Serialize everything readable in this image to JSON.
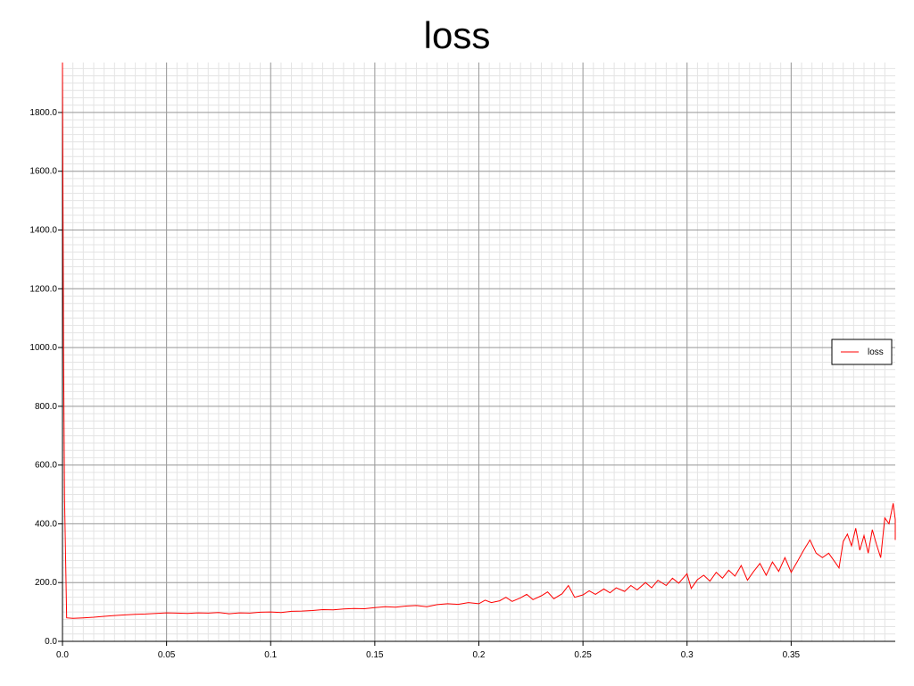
{
  "chart_data": {
    "type": "line",
    "title": "loss",
    "xlabel": "",
    "ylabel": "",
    "xlim": [
      0.0,
      0.4
    ],
    "ylim": [
      0.0,
      1970.0
    ],
    "x_ticks": [
      {
        "value": 0.0,
        "label": "0.0"
      },
      {
        "value": 0.05,
        "label": "0.05"
      },
      {
        "value": 0.1,
        "label": "0.1"
      },
      {
        "value": 0.15,
        "label": "0.15"
      },
      {
        "value": 0.2,
        "label": "0.2"
      },
      {
        "value": 0.25,
        "label": "0.25"
      },
      {
        "value": 0.3,
        "label": "0.3"
      },
      {
        "value": 0.35,
        "label": "0.35"
      }
    ],
    "y_ticks": [
      {
        "value": 0,
        "label": "0.0"
      },
      {
        "value": 200,
        "label": "200.0"
      },
      {
        "value": 400,
        "label": "400.0"
      },
      {
        "value": 600,
        "label": "600.0"
      },
      {
        "value": 800,
        "label": "800.0"
      },
      {
        "value": 1000,
        "label": "1000.0"
      },
      {
        "value": 1200,
        "label": "1200.0"
      },
      {
        "value": 1400,
        "label": "1400.0"
      },
      {
        "value": 1600,
        "label": "1600.0"
      },
      {
        "value": 1800,
        "label": "1800.0"
      }
    ],
    "grid": true,
    "legend_position": "right",
    "series": [
      {
        "name": "loss",
        "color": "#ff0000",
        "points": [
          [
            0.0,
            1970
          ],
          [
            0.0005,
            1000
          ],
          [
            0.001,
            490
          ],
          [
            0.002,
            80
          ],
          [
            0.005,
            78
          ],
          [
            0.01,
            80
          ],
          [
            0.015,
            82
          ],
          [
            0.02,
            85
          ],
          [
            0.025,
            88
          ],
          [
            0.03,
            90
          ],
          [
            0.035,
            92
          ],
          [
            0.04,
            93
          ],
          [
            0.045,
            95
          ],
          [
            0.05,
            97
          ],
          [
            0.055,
            96
          ],
          [
            0.06,
            95
          ],
          [
            0.065,
            97
          ],
          [
            0.07,
            96
          ],
          [
            0.075,
            98
          ],
          [
            0.08,
            94
          ],
          [
            0.085,
            97
          ],
          [
            0.09,
            96
          ],
          [
            0.095,
            99
          ],
          [
            0.1,
            100
          ],
          [
            0.105,
            98
          ],
          [
            0.11,
            102
          ],
          [
            0.115,
            103
          ],
          [
            0.12,
            105
          ],
          [
            0.125,
            108
          ],
          [
            0.13,
            107
          ],
          [
            0.135,
            110
          ],
          [
            0.14,
            112
          ],
          [
            0.145,
            111
          ],
          [
            0.15,
            115
          ],
          [
            0.155,
            118
          ],
          [
            0.16,
            116
          ],
          [
            0.165,
            120
          ],
          [
            0.17,
            122
          ],
          [
            0.175,
            118
          ],
          [
            0.18,
            125
          ],
          [
            0.185,
            128
          ],
          [
            0.19,
            126
          ],
          [
            0.195,
            132
          ],
          [
            0.2,
            128
          ],
          [
            0.203,
            140
          ],
          [
            0.206,
            132
          ],
          [
            0.21,
            138
          ],
          [
            0.213,
            150
          ],
          [
            0.216,
            136
          ],
          [
            0.22,
            148
          ],
          [
            0.223,
            160
          ],
          [
            0.226,
            142
          ],
          [
            0.23,
            155
          ],
          [
            0.233,
            168
          ],
          [
            0.236,
            145
          ],
          [
            0.24,
            162
          ],
          [
            0.243,
            190
          ],
          [
            0.246,
            150
          ],
          [
            0.25,
            158
          ],
          [
            0.253,
            172
          ],
          [
            0.256,
            160
          ],
          [
            0.26,
            178
          ],
          [
            0.263,
            165
          ],
          [
            0.266,
            182
          ],
          [
            0.27,
            170
          ],
          [
            0.273,
            190
          ],
          [
            0.276,
            175
          ],
          [
            0.28,
            200
          ],
          [
            0.283,
            182
          ],
          [
            0.286,
            208
          ],
          [
            0.29,
            190
          ],
          [
            0.293,
            215
          ],
          [
            0.296,
            198
          ],
          [
            0.3,
            230
          ],
          [
            0.302,
            180
          ],
          [
            0.305,
            210
          ],
          [
            0.308,
            225
          ],
          [
            0.311,
            205
          ],
          [
            0.314,
            235
          ],
          [
            0.317,
            215
          ],
          [
            0.32,
            242
          ],
          [
            0.323,
            222
          ],
          [
            0.326,
            258
          ],
          [
            0.329,
            208
          ],
          [
            0.332,
            238
          ],
          [
            0.335,
            265
          ],
          [
            0.338,
            225
          ],
          [
            0.341,
            270
          ],
          [
            0.344,
            238
          ],
          [
            0.347,
            285
          ],
          [
            0.35,
            235
          ],
          [
            0.353,
            272
          ],
          [
            0.356,
            310
          ],
          [
            0.359,
            345
          ],
          [
            0.362,
            300
          ],
          [
            0.365,
            285
          ],
          [
            0.368,
            300
          ],
          [
            0.371,
            270
          ],
          [
            0.373,
            250
          ],
          [
            0.375,
            340
          ],
          [
            0.377,
            365
          ],
          [
            0.379,
            325
          ],
          [
            0.381,
            385
          ],
          [
            0.383,
            310
          ],
          [
            0.385,
            360
          ],
          [
            0.387,
            300
          ],
          [
            0.389,
            380
          ],
          [
            0.391,
            330
          ],
          [
            0.393,
            285
          ],
          [
            0.395,
            420
          ],
          [
            0.397,
            400
          ],
          [
            0.399,
            470
          ],
          [
            0.401,
            415
          ],
          [
            0.403,
            350
          ],
          [
            0.405,
            345
          ]
        ]
      }
    ]
  }
}
